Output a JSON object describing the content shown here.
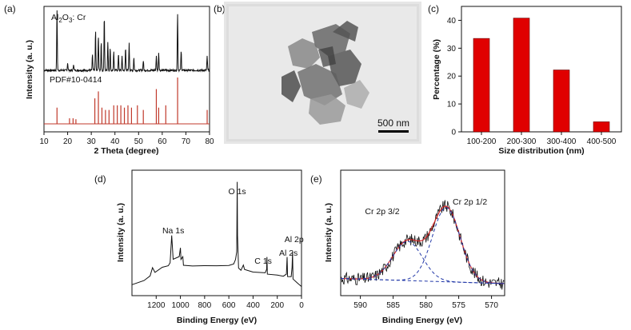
{
  "panels": [
    {
      "letter": "(a)"
    },
    {
      "letter": "(b)"
    },
    {
      "letter": "(c)"
    },
    {
      "letter": "(d)"
    },
    {
      "letter": "(e)"
    }
  ],
  "tem": {
    "scalebar_label": "500 nm"
  },
  "chart_data": [
    {
      "id": "a",
      "type": "line",
      "title": "",
      "xlabel": "2 Theta (degree)",
      "ylabel": "Intensity (a. u.)",
      "xlim": [
        10,
        80
      ],
      "xticks": [
        "10",
        "20",
        "30",
        "40",
        "50",
        "60",
        "70",
        "80"
      ],
      "legend": [
        "Al2O3: Cr",
        "PDF#10-0414"
      ],
      "series": [
        {
          "name": "Al2O3: Cr",
          "color": "#111111",
          "peaks": [
            [
              15.5,
              0.95
            ],
            [
              20,
              0.12
            ],
            [
              22.5,
              0.1
            ],
            [
              30.5,
              0.25
            ],
            [
              31.8,
              0.62
            ],
            [
              33,
              0.55
            ],
            [
              34.2,
              0.45
            ],
            [
              35.5,
              0.85
            ],
            [
              37,
              0.45
            ],
            [
              38,
              0.35
            ],
            [
              39.5,
              0.3
            ],
            [
              41.5,
              0.25
            ],
            [
              43,
              0.22
            ],
            [
              44.5,
              0.35
            ],
            [
              46,
              0.42
            ],
            [
              48,
              0.2
            ],
            [
              52,
              0.15
            ],
            [
              57.5,
              0.22
            ],
            [
              58.5,
              0.28
            ],
            [
              66.5,
              0.9
            ],
            [
              68,
              0.3
            ],
            [
              79,
              0.22
            ]
          ]
        },
        {
          "name": "PDF#10-0414",
          "color": "#c0392b",
          "sticks": [
            [
              15.5,
              0.35
            ],
            [
              20.8,
              0.12
            ],
            [
              22.3,
              0.12
            ],
            [
              23.5,
              0.1
            ],
            [
              31.5,
              0.55
            ],
            [
              33,
              0.7
            ],
            [
              34.5,
              0.35
            ],
            [
              36,
              0.3
            ],
            [
              37.5,
              0.3
            ],
            [
              39.5,
              0.4
            ],
            [
              41,
              0.4
            ],
            [
              42.5,
              0.4
            ],
            [
              44,
              0.35
            ],
            [
              45.5,
              0.4
            ],
            [
              47,
              0.35
            ],
            [
              49.5,
              0.4
            ],
            [
              52,
              0.3
            ],
            [
              57.5,
              0.75
            ],
            [
              58.5,
              0.35
            ],
            [
              61.5,
              0.4
            ],
            [
              66.5,
              1.0
            ],
            [
              79,
              0.3
            ]
          ]
        }
      ]
    },
    {
      "id": "c",
      "type": "bar",
      "title": "",
      "xlabel": "Size distribution (nm)",
      "ylabel": "Percentage (%)",
      "categories": [
        "100-200",
        "200-300",
        "300-400",
        "400-500"
      ],
      "values": [
        33.5,
        40.8,
        22.2,
        3.6
      ],
      "ylim": [
        0,
        45
      ],
      "yticks": [
        "0",
        "10",
        "20",
        "30",
        "40"
      ],
      "bar_color": "#e00000"
    },
    {
      "id": "d",
      "type": "line",
      "title": "",
      "xlabel": "Binding Energy (eV)",
      "ylabel": "Intensity (a. u.)",
      "xlim": [
        1400,
        0
      ],
      "xticks": [
        "1200",
        "1000",
        "800",
        "600",
        "400",
        "200",
        "0"
      ],
      "annotations": [
        {
          "text": "O 1s",
          "x": 531
        },
        {
          "text": "Na 1s",
          "x": 1072
        },
        {
          "text": "C 1s",
          "x": 285
        },
        {
          "text": "Al 2s",
          "x": 119
        },
        {
          "text": "Al 2p",
          "x": 74
        }
      ],
      "series": [
        {
          "name": "survey",
          "color": "#111111",
          "points": [
            [
              1400,
              0.04
            ],
            [
              1300,
              0.08
            ],
            [
              1250,
              0.12
            ],
            [
              1230,
              0.2
            ],
            [
              1210,
              0.16
            ],
            [
              1150,
              0.2
            ],
            [
              1100,
              0.22
            ],
            [
              1085,
              0.25
            ],
            [
              1072,
              0.5
            ],
            [
              1060,
              0.28
            ],
            [
              1010,
              0.3
            ],
            [
              1000,
              0.38
            ],
            [
              995,
              0.28
            ],
            [
              980,
              0.3
            ],
            [
              975,
              0.22
            ],
            [
              900,
              0.22
            ],
            [
              800,
              0.22
            ],
            [
              700,
              0.22
            ],
            [
              600,
              0.22
            ],
            [
              560,
              0.23
            ],
            [
              545,
              0.28
            ],
            [
              535,
              0.35
            ],
            [
              531,
              1.0
            ],
            [
              528,
              0.5
            ],
            [
              520,
              0.2
            ],
            [
              500,
              0.18
            ],
            [
              480,
              0.22
            ],
            [
              470,
              0.18
            ],
            [
              400,
              0.16
            ],
            [
              300,
              0.15
            ],
            [
              288,
              0.18
            ],
            [
              285,
              0.3
            ],
            [
              282,
              0.14
            ],
            [
              200,
              0.13
            ],
            [
              150,
              0.12
            ],
            [
              125,
              0.14
            ],
            [
              119,
              0.3
            ],
            [
              115,
              0.12
            ],
            [
              85,
              0.12
            ],
            [
              78,
              0.2
            ],
            [
              74,
              0.34
            ],
            [
              70,
              0.1
            ],
            [
              30,
              0.05
            ],
            [
              0,
              0.03
            ]
          ]
        }
      ]
    },
    {
      "id": "e",
      "type": "line",
      "title": "",
      "xlabel": "Binding Energy (eV)",
      "ylabel": "Intensity (a. u.)",
      "xlim": [
        593,
        568
      ],
      "xticks": [
        "590",
        "585",
        "580",
        "575",
        "570"
      ],
      "annotations": [
        {
          "text": "Cr 2p 3/2",
          "x": 587
        },
        {
          "text": "Cr 2p 1/2",
          "x": 574
        }
      ],
      "series": [
        {
          "name": "raw",
          "color": "#111111",
          "style": "noisy"
        },
        {
          "name": "fit",
          "color": "#d62728",
          "style": "solid"
        },
        {
          "name": "Cr 2p 3/2 component",
          "color": "#2238a8",
          "style": "dashed",
          "center": 582.8,
          "width": 3.2,
          "height": 0.38
        },
        {
          "name": "Cr 2p 1/2 component",
          "color": "#2238a8",
          "style": "dashed",
          "center": 576.9,
          "width": 3.0,
          "height": 0.72
        },
        {
          "name": "background",
          "color": "#2238a8",
          "style": "dashed"
        }
      ]
    }
  ]
}
